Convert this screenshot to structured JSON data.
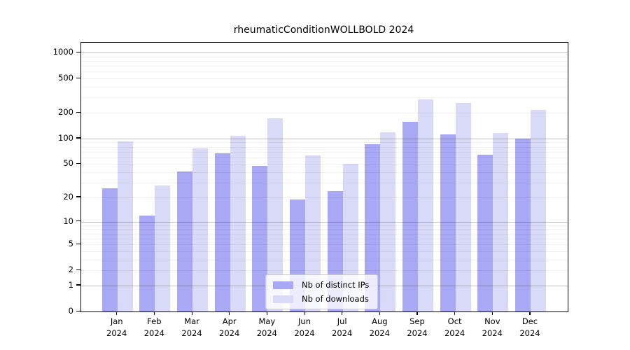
{
  "title": "rheumaticConditionWOLLBOLD 2024",
  "legend": {
    "items": [
      {
        "label": "Nb of distinct IPs",
        "color": "#a8a8f5"
      },
      {
        "label": "Nb of downloads",
        "color": "#d9d9f8"
      }
    ]
  },
  "chart_data": {
    "type": "bar",
    "title": "rheumaticConditionWOLLBOLD 2024",
    "categories": [
      "Jan 2024",
      "Feb 2024",
      "Mar 2024",
      "Apr 2024",
      "May 2024",
      "Jun 2024",
      "Jul 2024",
      "Aug 2024",
      "Sep 2024",
      "Oct 2024",
      "Nov 2024",
      "Dec 2024"
    ],
    "months": [
      "Jan",
      "Feb",
      "Mar",
      "Apr",
      "May",
      "Jun",
      "Jul",
      "Aug",
      "Sep",
      "Oct",
      "Nov",
      "Dec"
    ],
    "year": "2024",
    "series": [
      {
        "name": "Nb of distinct IPs",
        "color": "#a8a8f5",
        "values": [
          26,
          12,
          41,
          67,
          48,
          19,
          24,
          86,
          157,
          112,
          65,
          100
        ]
      },
      {
        "name": "Nb of downloads",
        "color": "#d9d9f8",
        "values": [
          92,
          28,
          76,
          107,
          172,
          63,
          50,
          118,
          285,
          260,
          116,
          215
        ]
      }
    ],
    "yscale": "log10(1+x)",
    "xlabel": "",
    "ylabel": "",
    "y_ticks": [
      0,
      1,
      2,
      5,
      10,
      20,
      50,
      100,
      200,
      500,
      1000
    ],
    "grid_major_values": [
      1,
      10,
      100,
      1000
    ],
    "grid_minor_values": [
      2,
      3,
      4,
      5,
      6,
      7,
      8,
      9,
      20,
      30,
      40,
      50,
      60,
      70,
      80,
      90,
      200,
      300,
      400,
      500,
      600,
      700,
      800,
      900
    ],
    "ylim": [
      0,
      1300
    ],
    "grid": "on",
    "legend_position": "lower center"
  }
}
